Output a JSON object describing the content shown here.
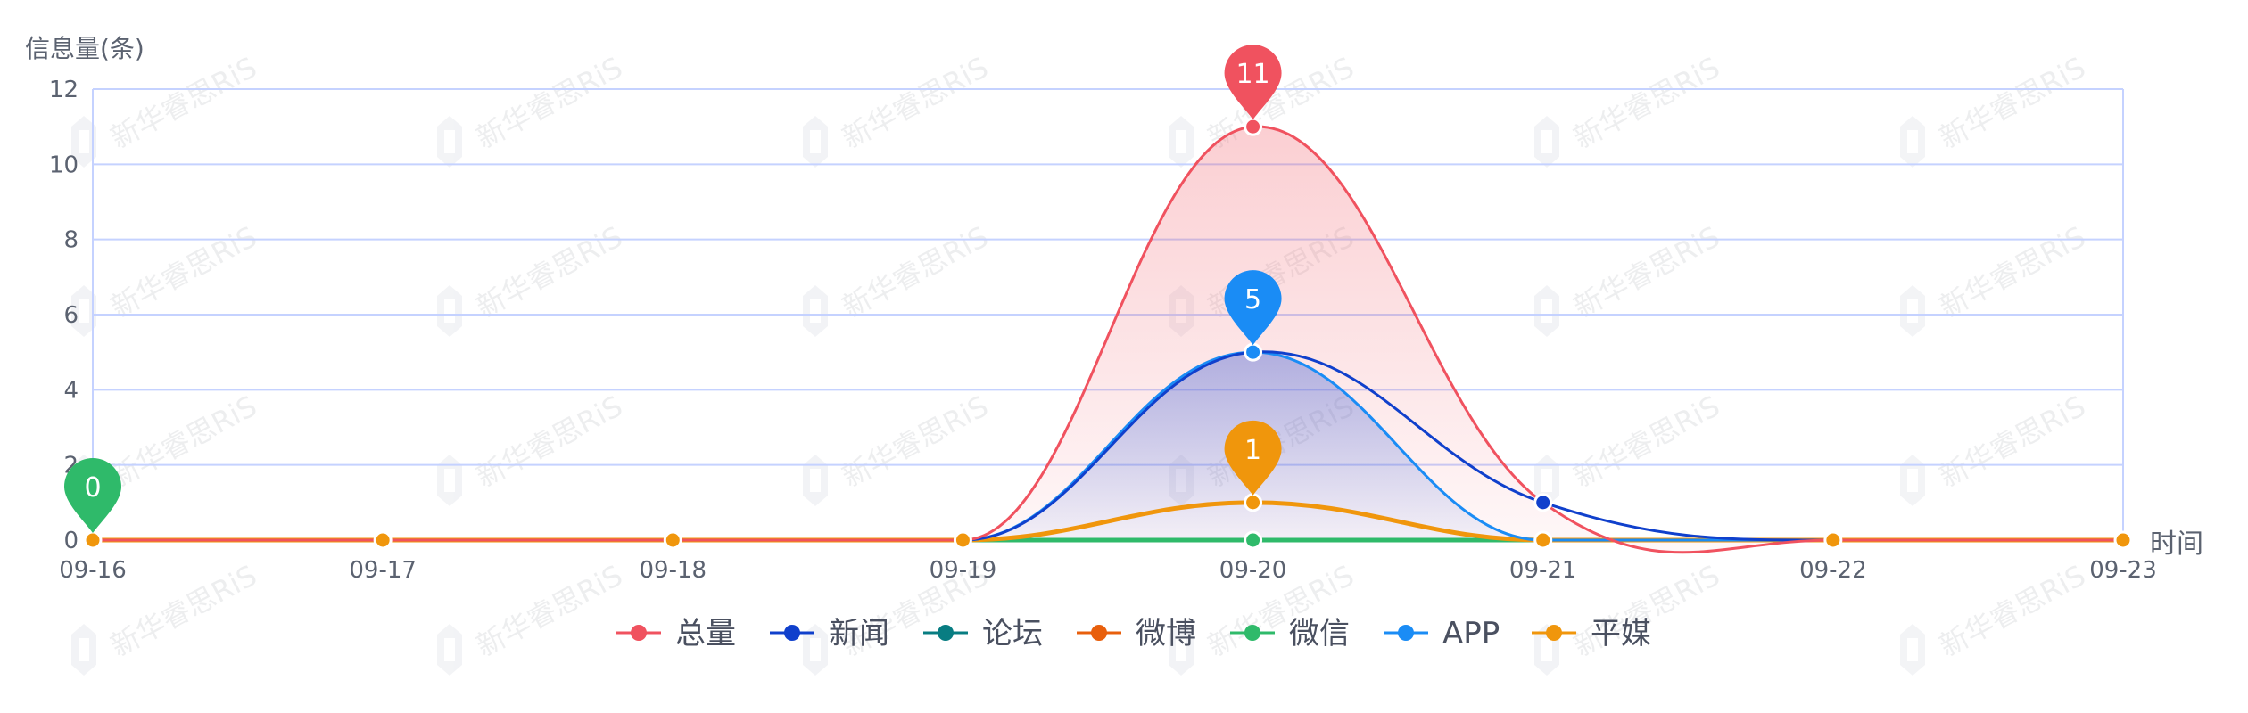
{
  "chart_data": {
    "type": "line",
    "ylabel": "信息量(条)",
    "xlabel": "时间",
    "categories": [
      "09-16",
      "09-17",
      "09-18",
      "09-19",
      "09-20",
      "09-21",
      "09-22",
      "09-23"
    ],
    "ylim": [
      0,
      12
    ],
    "yticks": [
      0,
      2,
      4,
      6,
      8,
      10,
      12
    ],
    "grid": true,
    "smooth": true,
    "legend_position": "bottom-center",
    "series": [
      {
        "name": "总量",
        "color": "#f0525f",
        "values": [
          0,
          0,
          0,
          0,
          11,
          1,
          0,
          0
        ],
        "area": true
      },
      {
        "name": "新闻",
        "color": "#1040cc",
        "values": [
          0,
          0,
          0,
          0,
          5,
          1,
          0,
          0
        ],
        "area": false
      },
      {
        "name": "论坛",
        "color": "#087d82",
        "values": [
          0,
          0,
          0,
          0,
          0,
          0,
          0,
          0
        ],
        "area": false
      },
      {
        "name": "微博",
        "color": "#e85f0c",
        "values": [
          0,
          0,
          0,
          0,
          0,
          0,
          0,
          0
        ],
        "area": false
      },
      {
        "name": "微信",
        "color": "#2fba6a",
        "values": [
          0,
          0,
          0,
          0,
          0,
          0,
          0,
          0
        ],
        "area": false
      },
      {
        "name": "APP",
        "color": "#1a8cf5",
        "values": [
          0,
          0,
          0,
          0,
          5,
          0,
          0,
          0
        ],
        "area": true
      },
      {
        "name": "平媒",
        "color": "#f0960c",
        "values": [
          0,
          0,
          0,
          0,
          1,
          0,
          0,
          0
        ],
        "area": false
      }
    ],
    "markers": [
      {
        "series": "总量",
        "category": "09-20",
        "value": 11,
        "label": "11",
        "color": "#f0525f"
      },
      {
        "series": "APP",
        "category": "09-20",
        "value": 5,
        "label": "5",
        "color": "#1a8cf5"
      },
      {
        "series": "平媒",
        "category": "09-20",
        "value": 1,
        "label": "1",
        "color": "#f0960c"
      },
      {
        "series": "微信",
        "category": "09-16",
        "value": 0,
        "label": "0",
        "color": "#2fba6a"
      }
    ],
    "watermark_text": "新华睿思RiS"
  }
}
